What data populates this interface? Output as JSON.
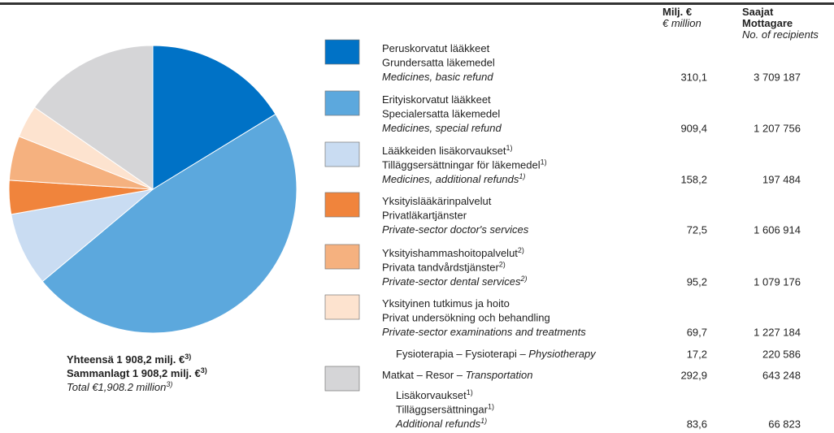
{
  "chart_data": {
    "type": "pie",
    "values": [
      310.1,
      909.4,
      158.2,
      72.5,
      95.2,
      69.7,
      292.9
    ],
    "value_labels": [
      "310,1",
      "909,4",
      "158,2",
      "72,5",
      "95,2",
      "69,7",
      "292,9"
    ],
    "recipients": [
      "3 709 187",
      "1 207 756",
      "197 484",
      "1 606 914",
      "1 079 176",
      "1 227 184",
      "643 248"
    ],
    "colors": [
      "#0072c6",
      "#5ca8dd",
      "#c9dcf2",
      "#f0843c",
      "#f5b17f",
      "#fde3cf",
      "#d5d5d7"
    ],
    "header_value": [
      [
        {
          "text": "Milj. €",
          "bold": true
        }
      ],
      [
        {
          "text": "€ million",
          "italic": true
        }
      ]
    ],
    "header_recipients": [
      [
        {
          "text": "Saajat",
          "bold": true
        }
      ],
      [
        {
          "text": "Mottagare",
          "bold": true
        }
      ],
      [
        {
          "text": "No. of recipients",
          "italic": true
        }
      ]
    ],
    "rows": [
      [
        [
          {
            "text": "Peruskorvatut lääkkeet"
          }
        ],
        [
          {
            "text": "Grundersatta läkemedel"
          }
        ],
        [
          {
            "text": "Medicines, basic refund",
            "italic": true
          }
        ]
      ],
      [
        [
          {
            "text": "Erityiskorvatut lääkkeet"
          }
        ],
        [
          {
            "text": "Specialersatta läkemedel"
          }
        ],
        [
          {
            "text": "Medicines, special refund",
            "italic": true
          }
        ]
      ],
      [
        [
          {
            "text": "Lääkkeiden lisäkorvaukset",
            "note": "1)"
          }
        ],
        [
          {
            "text": "Tilläggsersättningar för läkemedel",
            "note": "1)"
          }
        ],
        [
          {
            "text": "Medicines, additional refunds",
            "note": "1)",
            "italic": true
          }
        ]
      ],
      [
        [
          {
            "text": "Yksityislääkärinpalvelut"
          }
        ],
        [
          {
            "text": "Privatläkartjänster"
          }
        ],
        [
          {
            "text": "Private-sector doctor's services",
            "italic": true
          }
        ]
      ],
      [
        [
          {
            "text": "Yksityishammashoitopalvelut",
            "note": "2)"
          }
        ],
        [
          {
            "text": "Privata tandvårdstjänster",
            "note": "2)"
          }
        ],
        [
          {
            "text": "Private-sector dental services",
            "note": "2)",
            "italic": true
          }
        ]
      ],
      [
        [
          {
            "text": "Yksityinen tutkimus ja hoito"
          }
        ],
        [
          {
            "text": "Privat undersökning och behandling"
          }
        ],
        [
          {
            "text": "Private-sector examinations and treatments",
            "italic": true
          }
        ]
      ],
      [
        [
          {
            "text": "Matkat – Resor – "
          },
          {
            "text": "Transportation",
            "italic": true
          }
        ]
      ]
    ],
    "sub_rows": [
      {
        "after": 5,
        "lines": [
          [
            {
              "text": "Fysioterapia – Fysioterapi – "
            },
            {
              "text": "Physiotherapy",
              "italic": true
            }
          ]
        ],
        "value": "17,2",
        "recipients": "220 586"
      },
      {
        "after": 6,
        "lines": [
          [
            {
              "text": "Lisäkorvaukset",
              "note": "1)"
            }
          ],
          [
            {
              "text": "Tilläggsersättningar",
              "note": "1)"
            }
          ],
          [
            {
              "text": "Additional refunds",
              "note": "1)",
              "italic": true
            }
          ]
        ],
        "value": "83,6",
        "recipients": "66 823"
      }
    ],
    "total": [
      [
        {
          "text": "Yhteensä 1 908,2 milj. €",
          "note": "3)",
          "bold": true
        }
      ],
      [
        {
          "text": "Sammanlagt 1 908,2 milj. €",
          "note": "3)",
          "bold": true
        }
      ],
      [
        {
          "text": "Total €1,908.2 million",
          "note": "3)",
          "italic": true
        }
      ]
    ]
  }
}
